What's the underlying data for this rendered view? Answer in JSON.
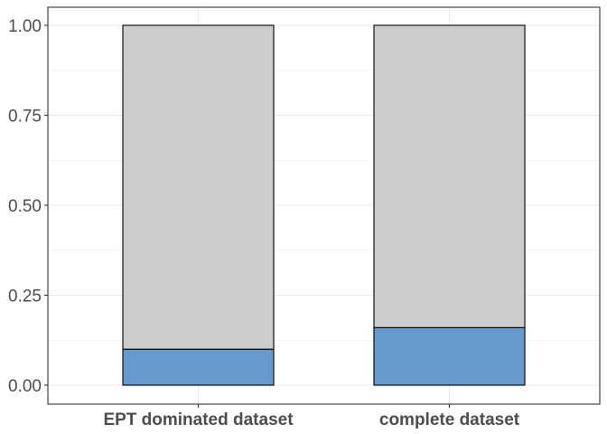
{
  "chart_data": {
    "type": "bar",
    "stacked": true,
    "categories": [
      "EPT dominated dataset",
      "complete dataset"
    ],
    "series": [
      {
        "values": [
          0.1,
          0.16
        ],
        "color": "#6699cc"
      },
      {
        "values": [
          0.9,
          0.84
        ],
        "color": "#cccccc"
      }
    ],
    "ylim": [
      0,
      1
    ],
    "yticks": [
      0.0,
      0.25,
      0.5,
      0.75,
      1.0
    ],
    "ytick_labels": [
      "0.00",
      "0.25",
      "0.50",
      "0.75",
      "1.00"
    ],
    "grid": true,
    "xlabel": "",
    "ylabel": "",
    "title": ""
  }
}
